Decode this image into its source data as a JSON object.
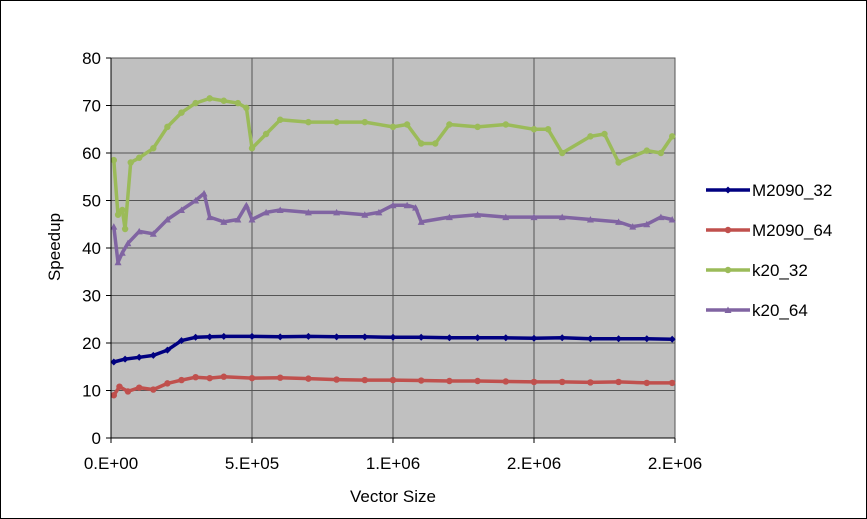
{
  "chart_data": {
    "type": "line",
    "title": "",
    "xlabel": "Vector Size",
    "ylabel": "Speedup",
    "xlim": [
      0,
      2000000
    ],
    "ylim": [
      0,
      80
    ],
    "y_ticks": [
      0,
      10,
      20,
      30,
      40,
      50,
      60,
      70,
      80
    ],
    "x_ticks": [
      0,
      500000,
      1000000,
      1500000,
      2000000
    ],
    "x_tick_labels": [
      "0.E+00",
      "5.E+05",
      "1.E+06",
      "2.E+06",
      "2.E+06"
    ],
    "grid": true,
    "plot_background": "#c0c0c0",
    "legend_position": "right",
    "series": [
      {
        "name": "M2090_32",
        "color": "#000080",
        "marker": "diamond",
        "x": [
          10000,
          50000,
          100000,
          150000,
          200000,
          250000,
          300000,
          350000,
          400000,
          500000,
          600000,
          700000,
          800000,
          900000,
          1000000,
          1100000,
          1200000,
          1300000,
          1400000,
          1500000,
          1600000,
          1700000,
          1800000,
          1900000,
          1990000
        ],
        "y": [
          16.0,
          16.6,
          17.0,
          17.4,
          18.5,
          20.5,
          21.2,
          21.3,
          21.4,
          21.4,
          21.3,
          21.4,
          21.3,
          21.3,
          21.2,
          21.2,
          21.1,
          21.1,
          21.1,
          21.0,
          21.1,
          20.9,
          20.9,
          20.9,
          20.8
        ]
      },
      {
        "name": "M2090_64",
        "color": "#c0504d",
        "marker": "circle",
        "x": [
          10000,
          30000,
          60000,
          100000,
          150000,
          200000,
          250000,
          300000,
          350000,
          400000,
          500000,
          600000,
          700000,
          800000,
          900000,
          1000000,
          1100000,
          1200000,
          1300000,
          1400000,
          1500000,
          1600000,
          1700000,
          1800000,
          1900000,
          1990000
        ],
        "y": [
          9.0,
          10.8,
          9.8,
          10.6,
          10.2,
          11.5,
          12.2,
          12.8,
          12.6,
          12.9,
          12.6,
          12.7,
          12.5,
          12.3,
          12.2,
          12.2,
          12.1,
          12.0,
          12.0,
          11.9,
          11.8,
          11.8,
          11.7,
          11.8,
          11.6,
          11.6
        ]
      },
      {
        "name": "k20_32",
        "color": "#9bbb59",
        "marker": "circle",
        "x": [
          10000,
          25000,
          40000,
          50000,
          70000,
          100000,
          150000,
          200000,
          250000,
          300000,
          350000,
          400000,
          450000,
          480000,
          500000,
          550000,
          600000,
          700000,
          800000,
          900000,
          1000000,
          1050000,
          1100000,
          1150000,
          1200000,
          1300000,
          1400000,
          1500000,
          1550000,
          1600000,
          1700000,
          1750000,
          1800000,
          1900000,
          1950000,
          1990000
        ],
        "y": [
          58.5,
          47.0,
          48.0,
          44.0,
          58.0,
          59.0,
          61.0,
          65.5,
          68.5,
          70.5,
          71.5,
          71.0,
          70.5,
          69.5,
          61.0,
          64.0,
          67.0,
          66.5,
          66.5,
          66.5,
          65.5,
          66.0,
          62.0,
          62.0,
          66.0,
          65.5,
          66.0,
          65.0,
          65.0,
          60.0,
          63.5,
          64.0,
          58.0,
          60.5,
          60.0,
          63.5
        ]
      },
      {
        "name": "k20_64",
        "color": "#8064a2",
        "marker": "triangle",
        "x": [
          10000,
          25000,
          40000,
          60000,
          100000,
          150000,
          200000,
          250000,
          300000,
          330000,
          350000,
          400000,
          450000,
          480000,
          500000,
          550000,
          600000,
          700000,
          800000,
          900000,
          950000,
          1000000,
          1050000,
          1080000,
          1100000,
          1200000,
          1300000,
          1400000,
          1500000,
          1600000,
          1700000,
          1800000,
          1850000,
          1900000,
          1950000,
          1990000
        ],
        "y": [
          44.5,
          37.0,
          39.0,
          41.0,
          43.5,
          43.0,
          46.0,
          48.0,
          50.0,
          51.5,
          46.5,
          45.5,
          46.0,
          49.0,
          46.0,
          47.5,
          48.0,
          47.5,
          47.5,
          47.0,
          47.5,
          49.0,
          49.0,
          48.5,
          45.5,
          46.5,
          47.0,
          46.5,
          46.5,
          46.5,
          46.0,
          45.5,
          44.5,
          45.0,
          46.5,
          46.0
        ]
      }
    ]
  }
}
